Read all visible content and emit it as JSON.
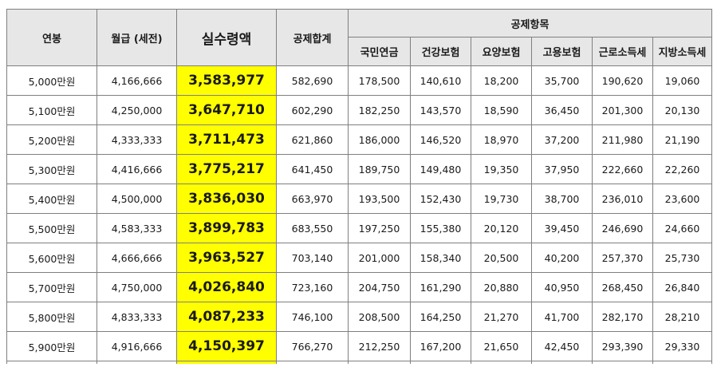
{
  "headers": {
    "salary": "연봉",
    "monthly": "월급 (세전)",
    "net": "실수령액",
    "deduction_total": "공제합계",
    "deduction_items": "공제항목",
    "items": [
      "국민연금",
      "건강보험",
      "요양보험",
      "고용보험",
      "근로소득세",
      "지방소득세"
    ]
  },
  "rows": [
    {
      "salary": "5,000만원",
      "monthly": "4,166,666",
      "net": "3,583,977",
      "total": "582,690",
      "pension": "178,500",
      "health": "140,610",
      "care": "18,200",
      "employment": "35,700",
      "income_tax": "190,620",
      "local_tax": "19,060"
    },
    {
      "salary": "5,100만원",
      "monthly": "4,250,000",
      "net": "3,647,710",
      "total": "602,290",
      "pension": "182,250",
      "health": "143,570",
      "care": "18,590",
      "employment": "36,450",
      "income_tax": "201,300",
      "local_tax": "20,130"
    },
    {
      "salary": "5,200만원",
      "monthly": "4,333,333",
      "net": "3,711,473",
      "total": "621,860",
      "pension": "186,000",
      "health": "146,520",
      "care": "18,970",
      "employment": "37,200",
      "income_tax": "211,980",
      "local_tax": "21,190"
    },
    {
      "salary": "5,300만원",
      "monthly": "4,416,666",
      "net": "3,775,217",
      "total": "641,450",
      "pension": "189,750",
      "health": "149,480",
      "care": "19,350",
      "employment": "37,950",
      "income_tax": "222,660",
      "local_tax": "22,260"
    },
    {
      "salary": "5,400만원",
      "monthly": "4,500,000",
      "net": "3,836,030",
      "total": "663,970",
      "pension": "193,500",
      "health": "152,430",
      "care": "19,730",
      "employment": "38,700",
      "income_tax": "236,010",
      "local_tax": "23,600"
    },
    {
      "salary": "5,500만원",
      "monthly": "4,583,333",
      "net": "3,899,783",
      "total": "683,550",
      "pension": "197,250",
      "health": "155,380",
      "care": "20,120",
      "employment": "39,450",
      "income_tax": "246,690",
      "local_tax": "24,660"
    },
    {
      "salary": "5,600만원",
      "monthly": "4,666,666",
      "net": "3,963,527",
      "total": "703,140",
      "pension": "201,000",
      "health": "158,340",
      "care": "20,500",
      "employment": "40,200",
      "income_tax": "257,370",
      "local_tax": "25,730"
    },
    {
      "salary": "5,700만원",
      "monthly": "4,750,000",
      "net": "4,026,840",
      "total": "723,160",
      "pension": "204,750",
      "health": "161,290",
      "care": "20,880",
      "employment": "40,950",
      "income_tax": "268,450",
      "local_tax": "26,840"
    },
    {
      "salary": "5,800만원",
      "monthly": "4,833,333",
      "net": "4,087,233",
      "total": "746,100",
      "pension": "208,500",
      "health": "164,250",
      "care": "21,270",
      "employment": "41,700",
      "income_tax": "282,170",
      "local_tax": "28,210"
    },
    {
      "salary": "5,900만원",
      "monthly": "4,916,666",
      "net": "4,150,397",
      "total": "766,270",
      "pension": "212,250",
      "health": "167,200",
      "care": "21,650",
      "employment": "42,450",
      "income_tax": "293,390",
      "local_tax": "29,330"
    }
  ],
  "colors": {
    "highlight": "#ffff00",
    "header_bg": "#e7e7e7",
    "border": "#7f7f7f"
  }
}
